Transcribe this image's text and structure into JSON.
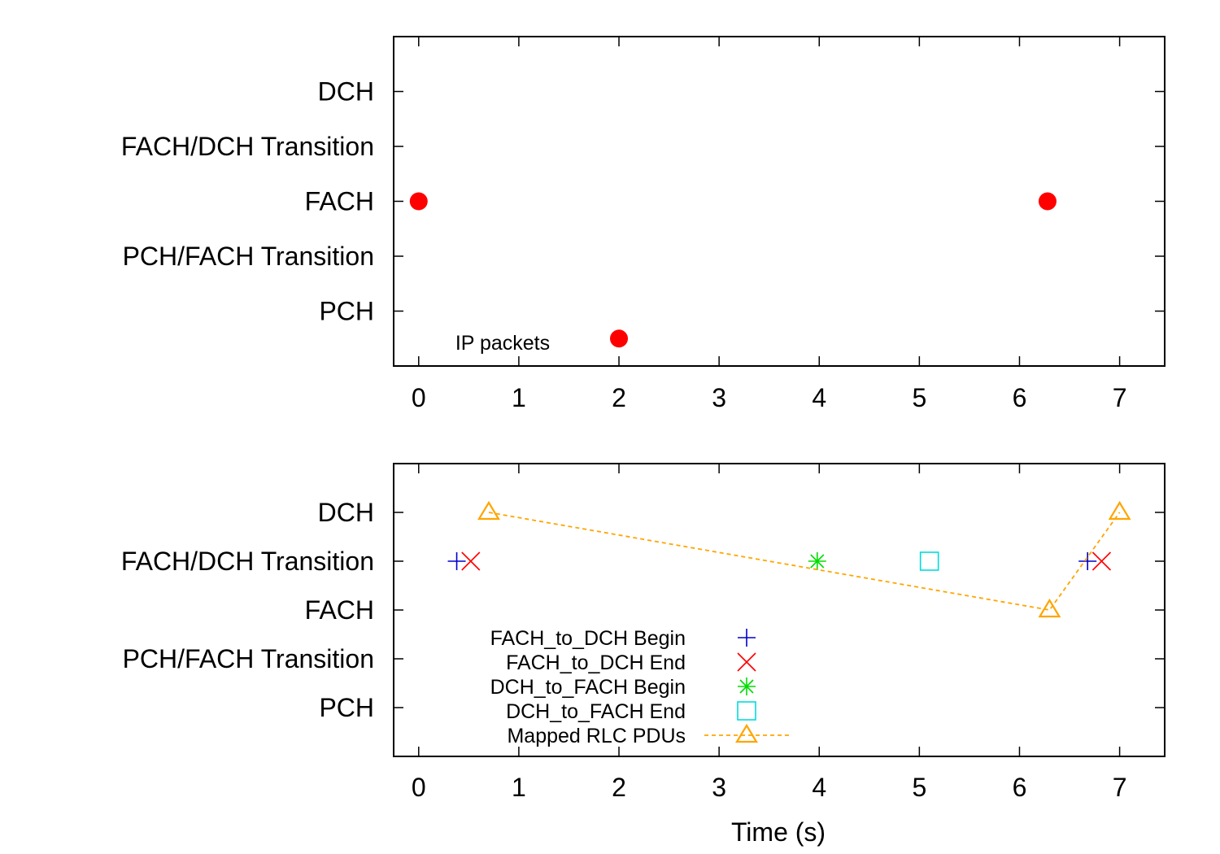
{
  "chart_data": [
    {
      "type": "scatter",
      "title": "",
      "xlabel": "",
      "ylabel": "",
      "xlim": [
        -0.25,
        7.45
      ],
      "ylim": [
        -0.5,
        5.5
      ],
      "xticks": [
        "0",
        "1",
        "2",
        "3",
        "4",
        "5",
        "6",
        "7"
      ],
      "ytick_labels": [
        "PCH",
        "PCH/FACH Transition",
        "FACH",
        "FACH/DCH Transition",
        "DCH"
      ],
      "grid": false,
      "annotations": [
        {
          "text": "IP packets"
        }
      ],
      "series": [
        {
          "marker": "filled-circle",
          "color": "#ff0000",
          "points": [
            {
              "x": 0.0,
              "y": "FACH"
            },
            {
              "x": 2.0,
              "y": "below PCH"
            },
            {
              "x": 6.28,
              "y": "FACH"
            }
          ]
        }
      ]
    },
    {
      "type": "scatter",
      "title": "",
      "xlabel": "Time (s)",
      "ylabel": "",
      "xlim": [
        -0.25,
        7.45
      ],
      "ylim": [
        -0.5,
        5.5
      ],
      "xticks": [
        "0",
        "1",
        "2",
        "3",
        "4",
        "5",
        "6",
        "7"
      ],
      "ytick_labels": [
        "PCH",
        "PCH/FACH Transition",
        "FACH",
        "FACH/DCH Transition",
        "DCH"
      ],
      "grid": false,
      "legend_position": "bottom-center",
      "series": [
        {
          "name": "FACH_to_DCH Begin",
          "marker": "plus",
          "color": "#0000cc",
          "points": [
            {
              "x": 0.38,
              "y": "FACH/DCH Transition"
            },
            {
              "x": 6.68,
              "y": "FACH/DCH Transition"
            }
          ]
        },
        {
          "name": "FACH_to_DCH End",
          "marker": "cross",
          "color": "#ff0000",
          "points": [
            {
              "x": 0.52,
              "y": "FACH/DCH Transition"
            },
            {
              "x": 6.82,
              "y": "FACH/DCH Transition"
            }
          ]
        },
        {
          "name": "DCH_to_FACH Begin",
          "marker": "star",
          "color": "#00dd00",
          "points": [
            {
              "x": 3.98,
              "y": "FACH/DCH Transition"
            }
          ]
        },
        {
          "name": "DCH_to_FACH End",
          "marker": "square",
          "color": "#00dddd",
          "points": [
            {
              "x": 5.1,
              "y": "FACH/DCH Transition"
            }
          ]
        },
        {
          "name": "Mapped RLC PDUs",
          "marker": "triangle",
          "line": "dashed",
          "color": "#ffa500",
          "points": [
            {
              "x": 0.7,
              "y": "DCH"
            },
            {
              "x": 6.3,
              "y": "FACH"
            },
            {
              "x": 7.0,
              "y": "DCH"
            }
          ]
        }
      ]
    }
  ]
}
